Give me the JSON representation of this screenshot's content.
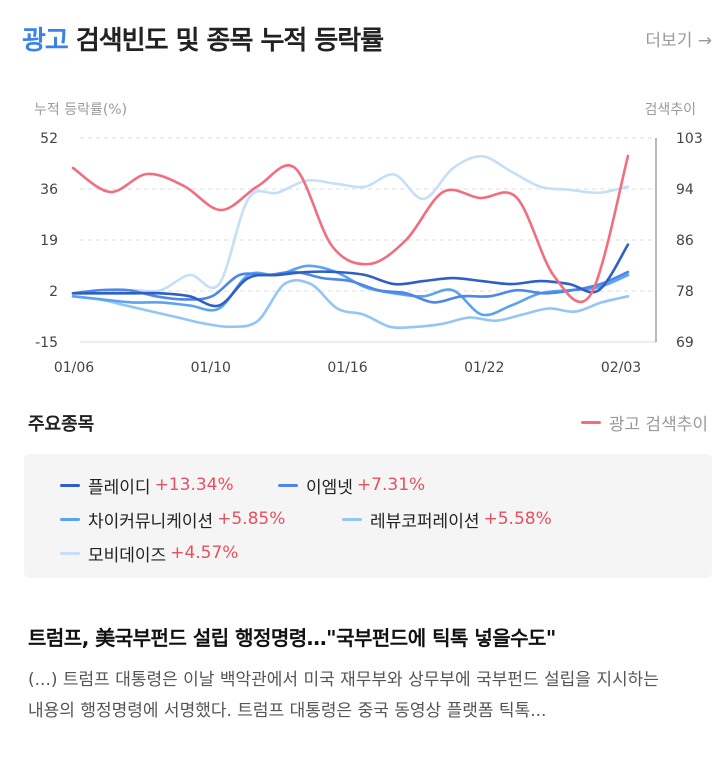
{
  "header": {
    "accent": "광고",
    "title": "검색빈도 및 종목 누적 등락률",
    "more": "더보기 →"
  },
  "chart_data": {
    "type": "line",
    "left_axis_title": "누적 등락률(%)",
    "right_axis_title": "검색추이",
    "left_ticks": [
      "52",
      "36",
      "19",
      "2",
      "-15"
    ],
    "right_ticks": [
      "103",
      "94",
      "86",
      "78",
      "69"
    ],
    "ylim_left": [
      -15,
      52
    ],
    "ylim_right": [
      69,
      103
    ],
    "x_ticks": [
      "01/06",
      "01/10",
      "01/16",
      "01/22",
      "02/03"
    ],
    "grid": true,
    "series": [
      {
        "name": "광고 검색추이",
        "axis": "right",
        "color": "#f06e80",
        "values": [
          98,
          94,
          97,
          95,
          91,
          95,
          98,
          85,
          82,
          86,
          94,
          93,
          93,
          80,
          77,
          100
        ]
      },
      {
        "name": "플레이디",
        "axis": "left",
        "color": "#2f5fc4",
        "values": [
          1,
          1,
          1,
          1,
          0,
          -3,
          6,
          7,
          8,
          8,
          7,
          4,
          5,
          6,
          5,
          4,
          5,
          4,
          2,
          17
        ]
      },
      {
        "name": "이엠넷",
        "axis": "left",
        "color": "#4f86ea",
        "values": [
          1,
          2,
          2,
          0,
          -1,
          0,
          7,
          7,
          8,
          6,
          5,
          2,
          1,
          -2,
          0,
          0,
          2,
          1,
          2,
          4,
          8
        ]
      },
      {
        "name": "차이커뮤니케이션",
        "axis": "left",
        "color": "#5aa3f0",
        "values": [
          0,
          -1,
          -2,
          -2,
          -3,
          -4,
          7,
          7,
          10,
          8,
          3,
          1,
          0,
          2,
          -6,
          -3,
          1,
          2,
          3,
          7
        ]
      },
      {
        "name": "레뷰코퍼레이션",
        "axis": "left",
        "color": "#94c6f5",
        "values": [
          0,
          -1,
          -3,
          -5,
          -7,
          -9,
          -10,
          -8,
          4,
          4,
          -4,
          -6,
          -10,
          -10,
          -9,
          -7,
          -8,
          -6,
          -4,
          -5,
          -2,
          0
        ]
      },
      {
        "name": "모비데이즈",
        "axis": "left",
        "color": "#c5dff8",
        "values": [
          1,
          1,
          2,
          2,
          7,
          4,
          32,
          34,
          38,
          37,
          36,
          40,
          32,
          42,
          46,
          41,
          36,
          35,
          34,
          36
        ]
      }
    ]
  },
  "section": {
    "title": "주요종목",
    "ad_legend": "광고 검색추이"
  },
  "stocks": [
    {
      "name": "플레이디",
      "change": "+13.34%",
      "color": "#2f5fc4"
    },
    {
      "name": "이엠넷",
      "change": "+7.31%",
      "color": "#4f86ea"
    },
    {
      "name": "차이커뮤니케이션",
      "change": "+5.85%",
      "color": "#5aa3f0"
    },
    {
      "name": "레뷰코퍼레이션",
      "change": "+5.58%",
      "color": "#94c6f5"
    },
    {
      "name": "모비데이즈",
      "change": "+4.57%",
      "color": "#c5dff8"
    }
  ],
  "news": {
    "title": "트럼프, 美국부펀드 설립 행정명령…\"국부펀드에 틱톡 넣을수도\"",
    "body": "(...) 트럼프 대통령은 이날 백악관에서 미국 재무부와 상무부에 국부펀드 설립을 지시하는 내용의 행정명령에 서명했다. 트럼프 대통령은 중국 동영상 플랫폼 틱톡..."
  }
}
